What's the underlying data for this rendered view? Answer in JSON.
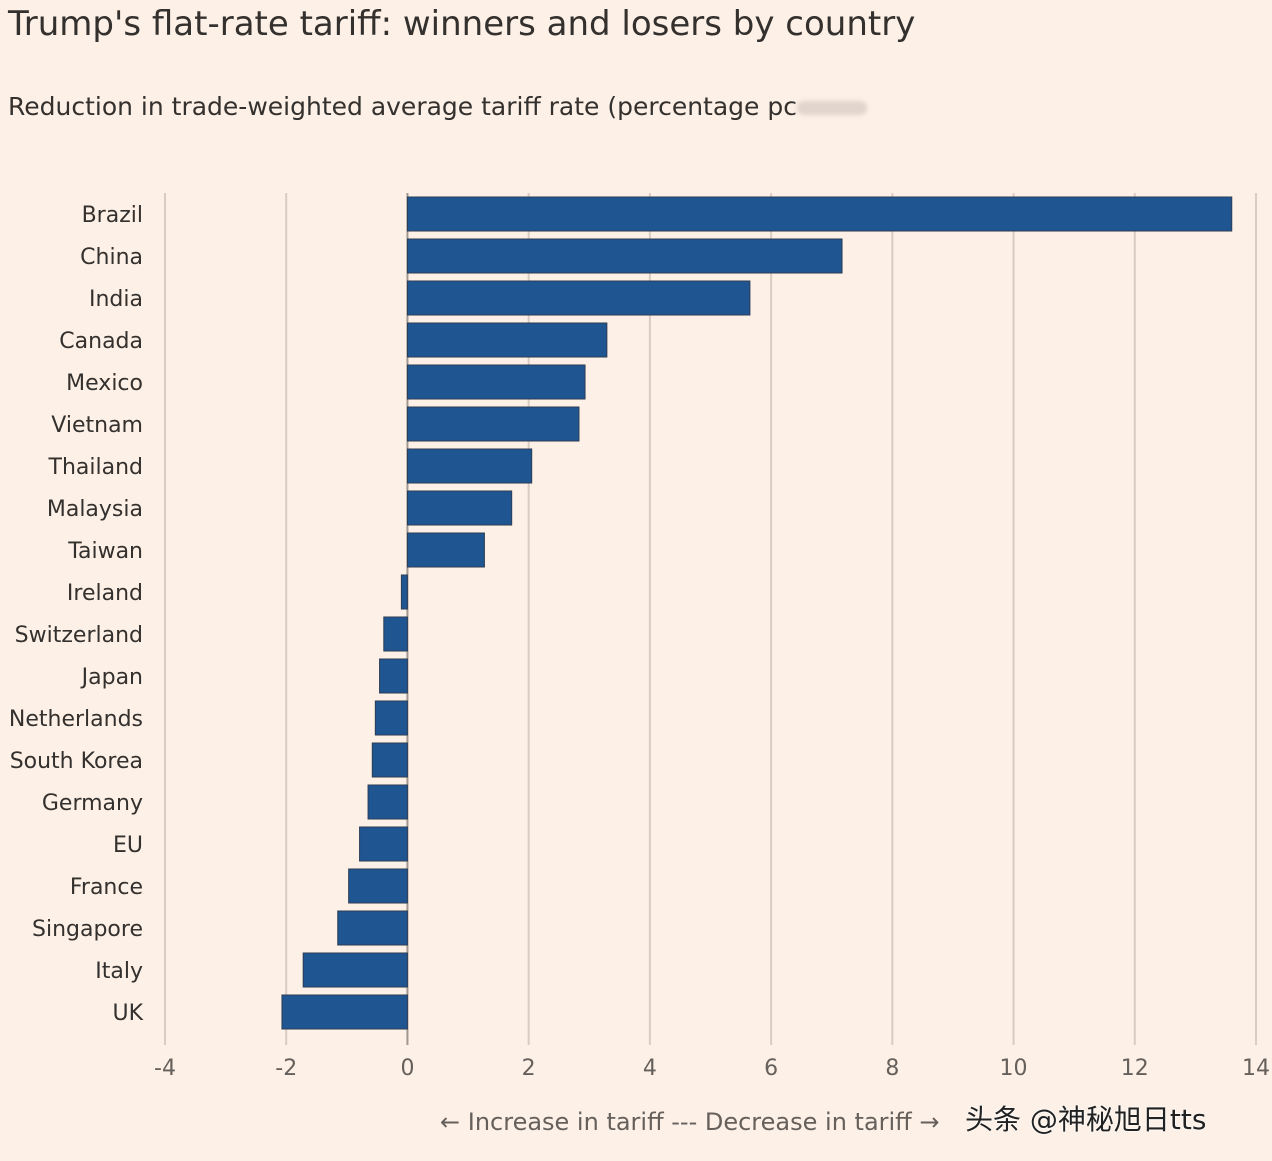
{
  "chart_data": {
    "type": "bar",
    "orientation": "horizontal",
    "title": "Trump's flat-rate tariff: winners and losers by country",
    "subtitle": "Reduction in trade-weighted average tariff rate (percentage pc",
    "xlabel": "← Increase in tariff --- Decrease in tariff →",
    "ylabel": "",
    "categories": [
      "Brazil",
      "China",
      "India",
      "Canada",
      "Mexico",
      "Vietnam",
      "Thailand",
      "Malaysia",
      "Taiwan",
      "Ireland",
      "Switzerland",
      "Japan",
      "Netherlands",
      "South Korea",
      "Germany",
      "EU",
      "France",
      "Singapore",
      "Italy",
      "UK"
    ],
    "values": [
      13.6,
      7.17,
      5.65,
      3.29,
      2.93,
      2.83,
      2.05,
      1.72,
      1.27,
      -0.1,
      -0.39,
      -0.46,
      -0.53,
      -0.58,
      -0.65,
      -0.79,
      -0.97,
      -1.15,
      -1.72,
      -2.07
    ],
    "xlim": [
      -4,
      14
    ],
    "xticks": [
      -4,
      -2,
      0,
      2,
      4,
      6,
      8,
      10,
      12,
      14
    ],
    "grid": "vertical",
    "legend": "none",
    "bar_color": "#1f5591",
    "background": "#fdf0e6"
  },
  "watermark": "头条 @神秘旭日tts"
}
